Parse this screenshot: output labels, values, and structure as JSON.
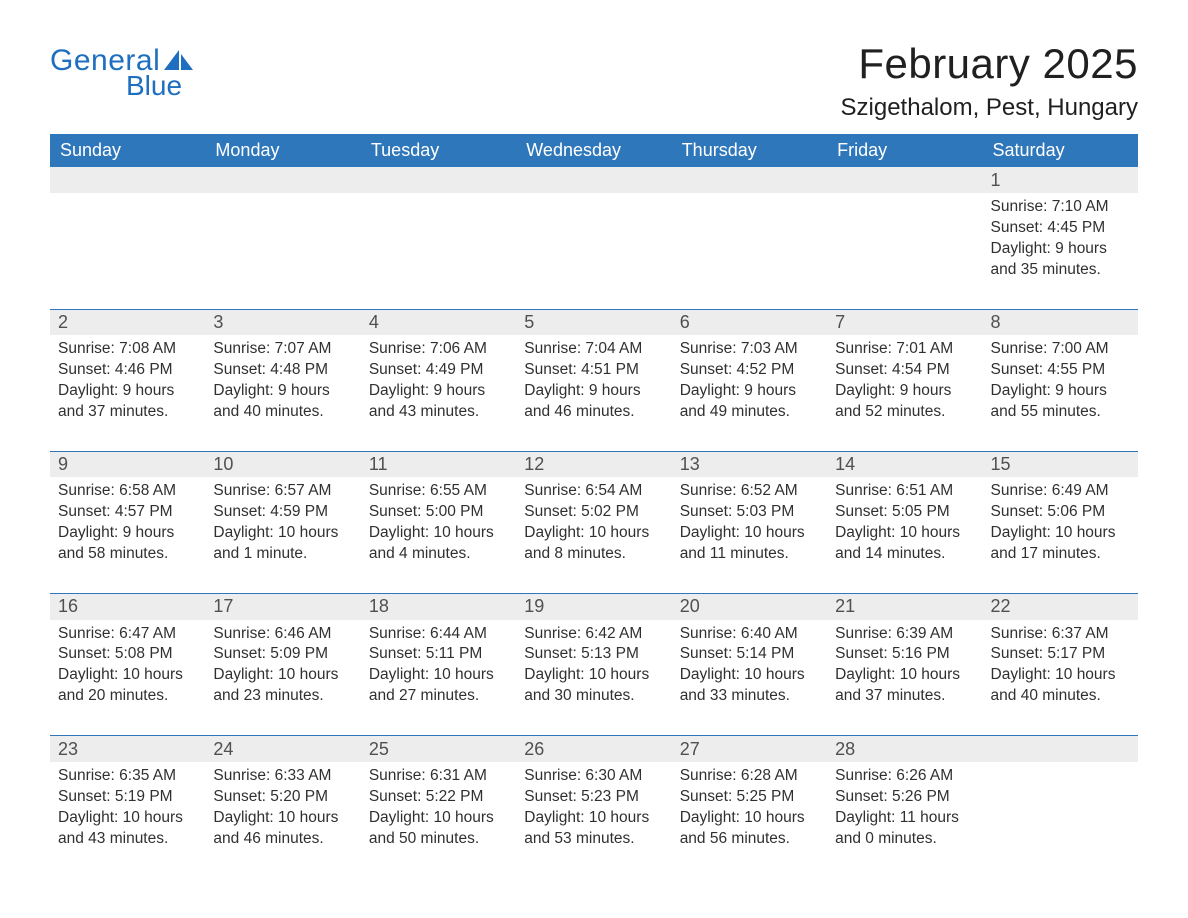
{
  "brand": {
    "word1": "General",
    "word2": "Blue",
    "color": "#1e6fbf"
  },
  "header": {
    "month_title": "February 2025",
    "location": "Szigethalom, Pest, Hungary"
  },
  "colors": {
    "header_bg": "#2f77bb",
    "header_text": "#ffffff",
    "daynum_bg": "#ededed",
    "border": "#2f77bb",
    "body_text": "#303030"
  },
  "weekday_labels": [
    "Sunday",
    "Monday",
    "Tuesday",
    "Wednesday",
    "Thursday",
    "Friday",
    "Saturday"
  ],
  "weeks": [
    [
      null,
      null,
      null,
      null,
      null,
      null,
      {
        "n": "1",
        "sr": "Sunrise: 7:10 AM",
        "ss": "Sunset: 4:45 PM",
        "d1": "Daylight: 9 hours",
        "d2": "and 35 minutes."
      }
    ],
    [
      {
        "n": "2",
        "sr": "Sunrise: 7:08 AM",
        "ss": "Sunset: 4:46 PM",
        "d1": "Daylight: 9 hours",
        "d2": "and 37 minutes."
      },
      {
        "n": "3",
        "sr": "Sunrise: 7:07 AM",
        "ss": "Sunset: 4:48 PM",
        "d1": "Daylight: 9 hours",
        "d2": "and 40 minutes."
      },
      {
        "n": "4",
        "sr": "Sunrise: 7:06 AM",
        "ss": "Sunset: 4:49 PM",
        "d1": "Daylight: 9 hours",
        "d2": "and 43 minutes."
      },
      {
        "n": "5",
        "sr": "Sunrise: 7:04 AM",
        "ss": "Sunset: 4:51 PM",
        "d1": "Daylight: 9 hours",
        "d2": "and 46 minutes."
      },
      {
        "n": "6",
        "sr": "Sunrise: 7:03 AM",
        "ss": "Sunset: 4:52 PM",
        "d1": "Daylight: 9 hours",
        "d2": "and 49 minutes."
      },
      {
        "n": "7",
        "sr": "Sunrise: 7:01 AM",
        "ss": "Sunset: 4:54 PM",
        "d1": "Daylight: 9 hours",
        "d2": "and 52 minutes."
      },
      {
        "n": "8",
        "sr": "Sunrise: 7:00 AM",
        "ss": "Sunset: 4:55 PM",
        "d1": "Daylight: 9 hours",
        "d2": "and 55 minutes."
      }
    ],
    [
      {
        "n": "9",
        "sr": "Sunrise: 6:58 AM",
        "ss": "Sunset: 4:57 PM",
        "d1": "Daylight: 9 hours",
        "d2": "and 58 minutes."
      },
      {
        "n": "10",
        "sr": "Sunrise: 6:57 AM",
        "ss": "Sunset: 4:59 PM",
        "d1": "Daylight: 10 hours",
        "d2": "and 1 minute."
      },
      {
        "n": "11",
        "sr": "Sunrise: 6:55 AM",
        "ss": "Sunset: 5:00 PM",
        "d1": "Daylight: 10 hours",
        "d2": "and 4 minutes."
      },
      {
        "n": "12",
        "sr": "Sunrise: 6:54 AM",
        "ss": "Sunset: 5:02 PM",
        "d1": "Daylight: 10 hours",
        "d2": "and 8 minutes."
      },
      {
        "n": "13",
        "sr": "Sunrise: 6:52 AM",
        "ss": "Sunset: 5:03 PM",
        "d1": "Daylight: 10 hours",
        "d2": "and 11 minutes."
      },
      {
        "n": "14",
        "sr": "Sunrise: 6:51 AM",
        "ss": "Sunset: 5:05 PM",
        "d1": "Daylight: 10 hours",
        "d2": "and 14 minutes."
      },
      {
        "n": "15",
        "sr": "Sunrise: 6:49 AM",
        "ss": "Sunset: 5:06 PM",
        "d1": "Daylight: 10 hours",
        "d2": "and 17 minutes."
      }
    ],
    [
      {
        "n": "16",
        "sr": "Sunrise: 6:47 AM",
        "ss": "Sunset: 5:08 PM",
        "d1": "Daylight: 10 hours",
        "d2": "and 20 minutes."
      },
      {
        "n": "17",
        "sr": "Sunrise: 6:46 AM",
        "ss": "Sunset: 5:09 PM",
        "d1": "Daylight: 10 hours",
        "d2": "and 23 minutes."
      },
      {
        "n": "18",
        "sr": "Sunrise: 6:44 AM",
        "ss": "Sunset: 5:11 PM",
        "d1": "Daylight: 10 hours",
        "d2": "and 27 minutes."
      },
      {
        "n": "19",
        "sr": "Sunrise: 6:42 AM",
        "ss": "Sunset: 5:13 PM",
        "d1": "Daylight: 10 hours",
        "d2": "and 30 minutes."
      },
      {
        "n": "20",
        "sr": "Sunrise: 6:40 AM",
        "ss": "Sunset: 5:14 PM",
        "d1": "Daylight: 10 hours",
        "d2": "and 33 minutes."
      },
      {
        "n": "21",
        "sr": "Sunrise: 6:39 AM",
        "ss": "Sunset: 5:16 PM",
        "d1": "Daylight: 10 hours",
        "d2": "and 37 minutes."
      },
      {
        "n": "22",
        "sr": "Sunrise: 6:37 AM",
        "ss": "Sunset: 5:17 PM",
        "d1": "Daylight: 10 hours",
        "d2": "and 40 minutes."
      }
    ],
    [
      {
        "n": "23",
        "sr": "Sunrise: 6:35 AM",
        "ss": "Sunset: 5:19 PM",
        "d1": "Daylight: 10 hours",
        "d2": "and 43 minutes."
      },
      {
        "n": "24",
        "sr": "Sunrise: 6:33 AM",
        "ss": "Sunset: 5:20 PM",
        "d1": "Daylight: 10 hours",
        "d2": "and 46 minutes."
      },
      {
        "n": "25",
        "sr": "Sunrise: 6:31 AM",
        "ss": "Sunset: 5:22 PM",
        "d1": "Daylight: 10 hours",
        "d2": "and 50 minutes."
      },
      {
        "n": "26",
        "sr": "Sunrise: 6:30 AM",
        "ss": "Sunset: 5:23 PM",
        "d1": "Daylight: 10 hours",
        "d2": "and 53 minutes."
      },
      {
        "n": "27",
        "sr": "Sunrise: 6:28 AM",
        "ss": "Sunset: 5:25 PM",
        "d1": "Daylight: 10 hours",
        "d2": "and 56 minutes."
      },
      {
        "n": "28",
        "sr": "Sunrise: 6:26 AM",
        "ss": "Sunset: 5:26 PM",
        "d1": "Daylight: 11 hours",
        "d2": "and 0 minutes."
      },
      null
    ]
  ]
}
